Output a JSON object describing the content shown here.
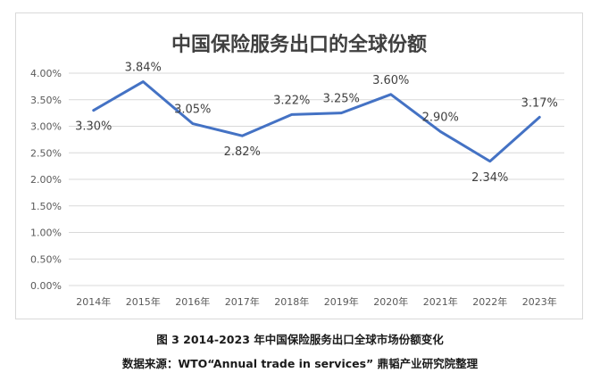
{
  "chart_data": {
    "type": "line",
    "title": "中国保险服务出口的全球份额",
    "categories": [
      "2014年",
      "2015年",
      "2016年",
      "2017年",
      "2018年",
      "2019年",
      "2020年",
      "2021年",
      "2022年",
      "2023年"
    ],
    "series": [
      {
        "values": [
          3.3,
          3.84,
          3.05,
          2.82,
          3.22,
          3.25,
          3.6,
          2.9,
          2.34,
          3.17
        ],
        "labels": [
          "3.30%",
          "3.84%",
          "3.05%",
          "2.82%",
          "3.22%",
          "3.25%",
          "3.60%",
          "2.90%",
          "2.34%",
          "3.17%"
        ]
      }
    ],
    "ylim": [
      0,
      4.0
    ],
    "yticks": [
      "0.00%",
      "0.50%",
      "1.00%",
      "1.50%",
      "2.00%",
      "2.50%",
      "3.00%",
      "3.50%",
      "4.00%"
    ],
    "xlabel": "",
    "ylabel": "",
    "grid": true,
    "legend": "none",
    "line_color": "#4472c4",
    "grid_color": "#d9d9d9"
  },
  "captions": {
    "figure": "图 3 2014-2023 年中国保险服务出口全球市场份额变化",
    "source": "数据来源：WTO“Annual trade in services” 鼎韬产业研究院整理"
  }
}
